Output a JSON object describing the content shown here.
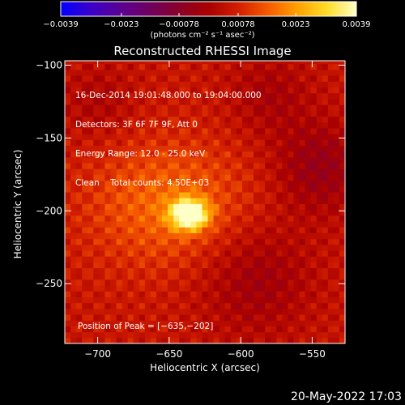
{
  "chart_data": {
    "type": "heatmap",
    "title": "Reconstructed RHESSI Image",
    "xlabel": "Heliocentric X (arcsec)",
    "ylabel": "Heliocentric Y (arcsec)",
    "xlim": [
      -723,
      -527
    ],
    "ylim": [
      -291,
      -97
    ],
    "x_ticks": [
      {
        "value": -700,
        "label": "−700"
      },
      {
        "value": -650,
        "label": "−650"
      },
      {
        "value": -600,
        "label": "−600"
      },
      {
        "value": -550,
        "label": "−550"
      }
    ],
    "y_ticks": [
      {
        "value": -100,
        "label": "−100"
      },
      {
        "value": -150,
        "label": "−150"
      },
      {
        "value": -200,
        "label": "−200"
      },
      {
        "value": -250,
        "label": "−250"
      }
    ],
    "info_lines": [
      "16-Dec-2014 19:01:48.000 to 19:04:00.000",
      "Detectors: 3F 6F 7F 9F, Att 0",
      "Energy Range: 12.0 - 25.0 keV",
      "Clean    Total counts: 4.50E+03"
    ],
    "peak_label": "Position of Peak = [−635,−202]",
    "peak": {
      "x": -635,
      "y": -202,
      "value": 0.0039
    },
    "colorbar": {
      "min": -0.0039,
      "max": 0.0039,
      "ticks": [
        {
          "value": -0.0039,
          "label": "−0.0039"
        },
        {
          "value": -0.0023,
          "label": "−0.0023"
        },
        {
          "value": -0.00078,
          "label": "−0.00078"
        },
        {
          "value": 0.00078,
          "label": "0.00078"
        },
        {
          "value": 0.0023,
          "label": "0.0023"
        },
        {
          "value": 0.0039,
          "label": "0.0039"
        }
      ],
      "unit": "(photons cm⁻² s⁻¹ asec⁻²)",
      "colormap": [
        "#0000ff",
        "#3a00c8",
        "#5a0094",
        "#6e0060",
        "#8a0028",
        "#a80000",
        "#d21e00",
        "#f55a00",
        "#ffa000",
        "#ffdc28",
        "#ffffc8"
      ]
    },
    "sources": [
      {
        "x": -636,
        "y": -202,
        "sigma_x": 9,
        "sigma_y": 7,
        "amplitude": 0.0039
      },
      {
        "x": -650,
        "y": -195,
        "sigma_x": 40,
        "sigma_y": 30,
        "amplitude": 0.0012
      }
    ],
    "negative_regions": [
      {
        "x": -590,
        "y": -245,
        "radius": 28,
        "amplitude": -0.0008
      },
      {
        "x": -545,
        "y": -170,
        "radius": 22,
        "amplitude": -0.001
      },
      {
        "x": -580,
        "y": -120,
        "radius": 20,
        "amplitude": -0.0006
      },
      {
        "x": -700,
        "y": -125,
        "radius": 18,
        "amplitude": -0.0005
      }
    ]
  },
  "timestamp": "20-May-2022 17:03"
}
